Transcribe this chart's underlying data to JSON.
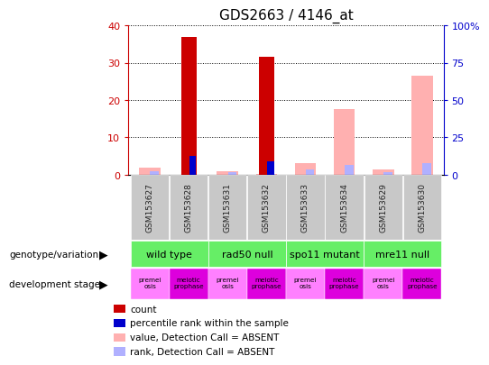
{
  "title": "GDS2663 / 4146_at",
  "samples": [
    "GSM153627",
    "GSM153628",
    "GSM153631",
    "GSM153632",
    "GSM153633",
    "GSM153634",
    "GSM153629",
    "GSM153630"
  ],
  "count_values": [
    0,
    37,
    0,
    31.5,
    0,
    0,
    0,
    0
  ],
  "rank_values": [
    0,
    12.5,
    0,
    9.0,
    0,
    0,
    0,
    0
  ],
  "absent_value_values": [
    1.8,
    0,
    1.0,
    0.3,
    3.0,
    17.5,
    1.5,
    26.5
  ],
  "absent_rank_values": [
    2.2,
    0,
    1.5,
    0.3,
    3.5,
    6.5,
    1.5,
    7.5
  ],
  "ylim_left": [
    0,
    40
  ],
  "ylim_right": [
    0,
    100
  ],
  "yticks_left": [
    0,
    10,
    20,
    30,
    40
  ],
  "yticks_right": [
    0,
    25,
    50,
    75,
    100
  ],
  "ytick_labels_right": [
    "0",
    "25",
    "50",
    "75",
    "100%"
  ],
  "count_color": "#cc0000",
  "rank_color": "#0000cc",
  "absent_value_color": "#ffb0b0",
  "absent_rank_color": "#b0b0ff",
  "genotype_groups": [
    {
      "label": "wild type",
      "cols": [
        0,
        1
      ]
    },
    {
      "label": "rad50 null",
      "cols": [
        2,
        3
      ]
    },
    {
      "label": "spo11 mutant",
      "cols": [
        4,
        5
      ]
    },
    {
      "label": "mre11 null",
      "cols": [
        6,
        7
      ]
    }
  ],
  "dev_stages": [
    "premei\nosis",
    "meiotic\nprophase",
    "premei\nosis",
    "meiotic\nprophase",
    "premei\nosis",
    "meiotic\nprophase",
    "premei\nosis",
    "meiotic\nprophase"
  ],
  "dev_stage_colors": [
    "#ff80ff",
    "#dd00dd",
    "#ff80ff",
    "#dd00dd",
    "#ff80ff",
    "#dd00dd",
    "#ff80ff",
    "#dd00dd"
  ],
  "genotype_color": "#66ee66",
  "sample_box_color": "#c8c8c8",
  "left_axis_color": "#cc0000",
  "right_axis_color": "#0000cc",
  "legend_items": [
    {
      "color": "#cc0000",
      "label": "count"
    },
    {
      "color": "#0000cc",
      "label": "percentile rank within the sample"
    },
    {
      "color": "#ffb0b0",
      "label": "value, Detection Call = ABSENT"
    },
    {
      "color": "#b0b0ff",
      "label": "rank, Detection Call = ABSENT"
    }
  ]
}
